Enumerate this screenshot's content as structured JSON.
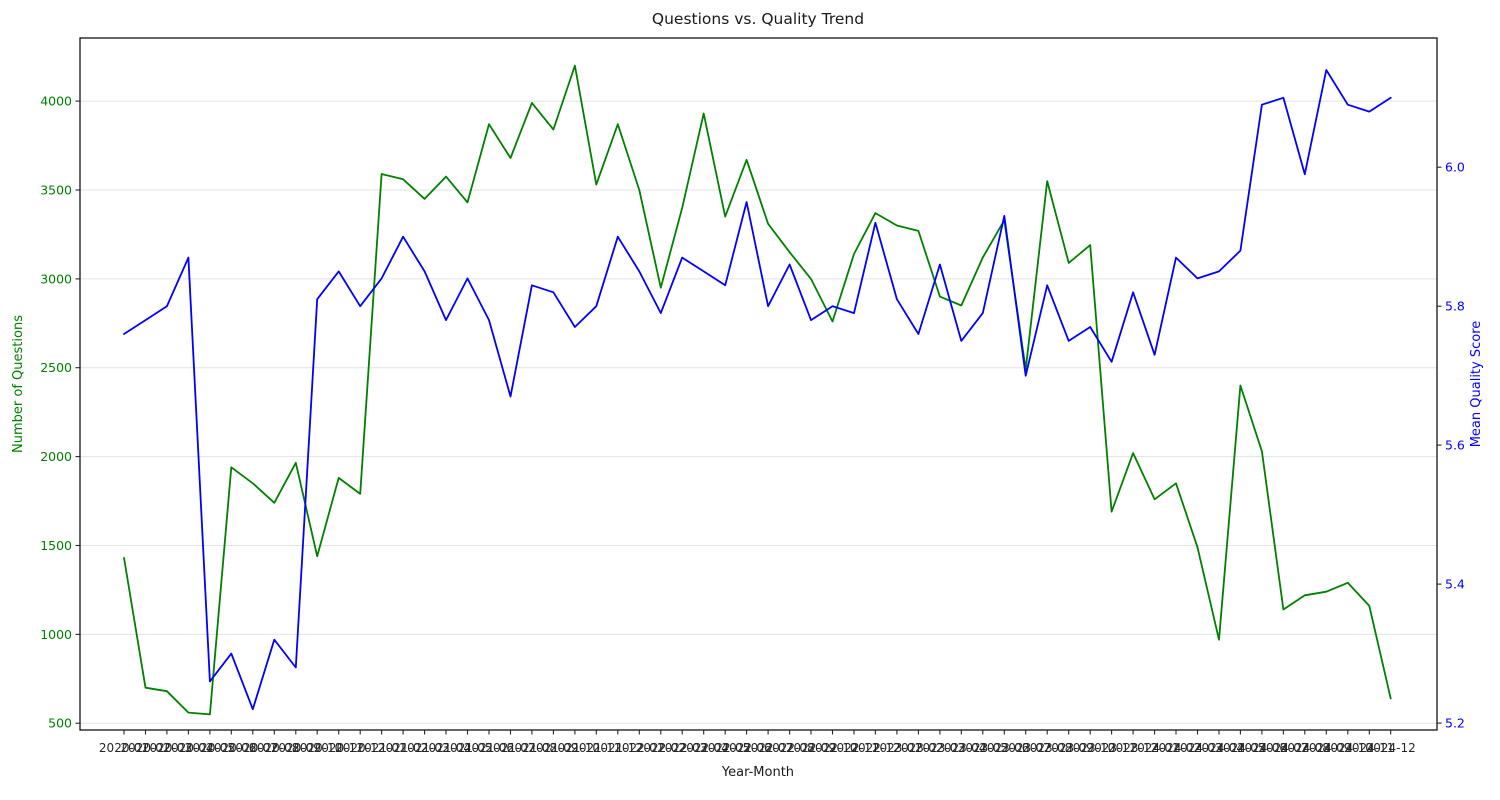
{
  "chart_data": {
    "type": "line",
    "title": "Questions vs. Quality Trend",
    "xlabel": "Year-Month",
    "ylabel_left": "Number of Questions",
    "ylabel_right": "Mean Quality Score",
    "legend": "none",
    "grid": "horizontal",
    "grid_color": "#e3e3e3",
    "background": "#ffffff",
    "frame_color": "#000000",
    "text_color": "#262626",
    "categories": [
      "2020-01",
      "2020-02",
      "2020-03",
      "2020-04",
      "2020-05",
      "2020-06",
      "2020-07",
      "2020-08",
      "2020-09",
      "2020-10",
      "2020-11",
      "2020-12",
      "2021-01",
      "2021-02",
      "2021-03",
      "2021-04",
      "2021-05",
      "2021-06",
      "2021-07",
      "2021-08",
      "2021-09",
      "2021-10",
      "2021-11",
      "2021-12",
      "2022-01",
      "2022-02",
      "2022-03",
      "2022-04",
      "2022-05",
      "2022-06",
      "2022-07",
      "2022-08",
      "2022-09",
      "2022-10",
      "2022-11",
      "2022-12",
      "2023-01",
      "2023-02",
      "2023-03",
      "2023-04",
      "2023-05",
      "2023-06",
      "2023-07",
      "2023-08",
      "2023-09",
      "2023-10",
      "2023-11",
      "2023-12",
      "2024-01",
      "2024-02",
      "2024-03",
      "2024-04",
      "2024-05",
      "2024-06",
      "2024-07",
      "2024-08",
      "2024-09",
      "2024-10",
      "2024-11",
      "2024-12"
    ],
    "series": [
      {
        "name": "Number of Questions",
        "axis": "left",
        "color": "#008000",
        "values": [
          1430,
          700,
          680,
          560,
          550,
          1940,
          1850,
          1740,
          1965,
          1440,
          1880,
          1790,
          3590,
          3560,
          3450,
          3575,
          3430,
          3870,
          3680,
          3990,
          3840,
          4200,
          3530,
          3870,
          3500,
          2950,
          3400,
          3930,
          3350,
          3670,
          3310,
          3150,
          3000,
          2760,
          3140,
          3370,
          3300,
          3270,
          2900,
          2850,
          3120,
          3330,
          2490,
          3550,
          3090,
          3190,
          1690,
          2020,
          1760,
          1850,
          1490,
          970,
          2400,
          2030,
          1140,
          1220,
          1240,
          1290,
          1160,
          640
        ]
      },
      {
        "name": "Mean Quality Score",
        "axis": "right",
        "color": "#0000ff",
        "values": [
          5.76,
          5.78,
          5.8,
          5.87,
          5.26,
          5.3,
          5.22,
          5.32,
          5.28,
          5.81,
          5.85,
          5.8,
          5.84,
          5.9,
          5.85,
          5.78,
          5.84,
          5.78,
          5.67,
          5.83,
          5.82,
          5.77,
          5.8,
          5.9,
          5.85,
          5.79,
          5.87,
          5.85,
          5.83,
          5.95,
          5.8,
          5.86,
          5.78,
          5.8,
          5.79,
          5.92,
          5.81,
          5.76,
          5.86,
          5.75,
          5.79,
          5.93,
          5.7,
          5.83,
          5.75,
          5.77,
          5.72,
          5.82,
          5.73,
          5.87,
          5.84,
          5.85,
          5.88,
          6.09,
          6.1,
          5.99,
          6.14,
          6.09,
          6.08,
          6.1
        ]
      }
    ],
    "yticks_left": [
      "500",
      "1000",
      "1500",
      "2000",
      "2500",
      "3000",
      "3500",
      "4000"
    ],
    "yticks_right": [
      "5.2",
      "5.4",
      "5.6",
      "5.8",
      "6.0"
    ],
    "ylim_left": [
      462,
      4355
    ],
    "ylim_right": [
      5.19,
      6.186
    ]
  }
}
